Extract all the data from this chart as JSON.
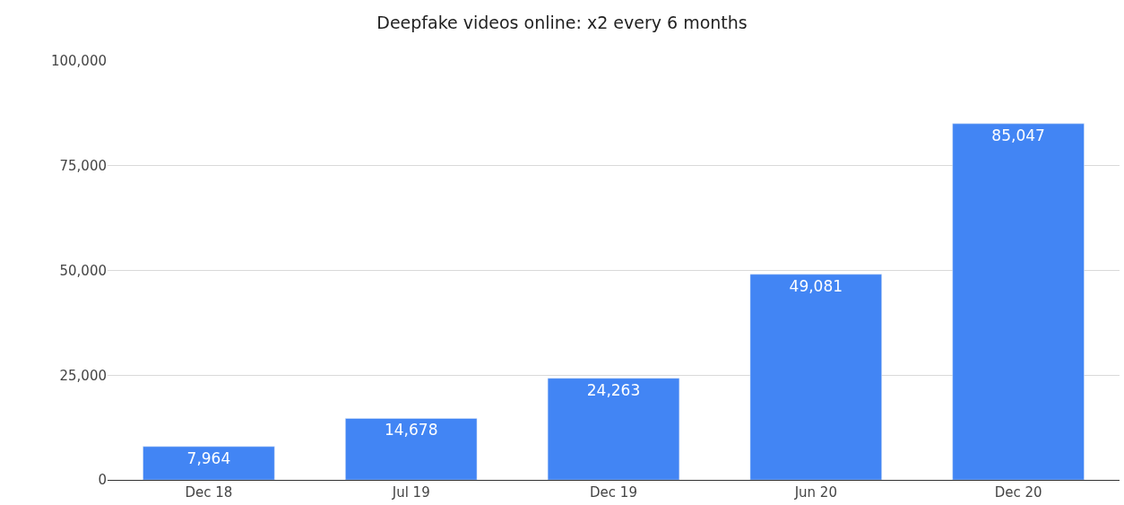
{
  "chart_data": {
    "type": "bar",
    "title": "Deepfake videos online: x2 every 6 months",
    "categories": [
      "Dec 18",
      "Jul 19",
      "Dec 19",
      "Jun 20",
      "Dec 20"
    ],
    "values": [
      7964,
      14678,
      24263,
      49081,
      85047
    ],
    "value_labels": [
      "7,964",
      "14,678",
      "24,263",
      "49,081",
      "85,047"
    ],
    "color": "#4285f4",
    "ylim": [
      0,
      100000
    ],
    "yticks": [
      0,
      {
        "value": 25000,
        "label": "25,000"
      },
      {
        "value": 50000,
        "label": "50,000"
      },
      {
        "value": 75000,
        "label": "75,000"
      },
      {
        "value": 100000,
        "label": "100,000"
      }
    ],
    "grid": "y",
    "legend": false
  }
}
